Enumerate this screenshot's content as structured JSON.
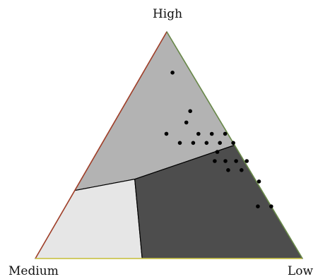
{
  "chart_data": {
    "type": "scatter",
    "subtype": "ternary",
    "vertex_labels": {
      "top": "High",
      "bottom_left": "Medium",
      "bottom_right": "Low"
    },
    "edge_colors": {
      "high_medium": "#a2402a",
      "medium_low": "#d9d24a",
      "low_high": "#6a8a4a"
    },
    "regions": [
      {
        "vertices": [
          [
            1.0,
            0.0,
            0.0
          ],
          [
            0.3,
            0.7,
            0.0
          ],
          [
            0.35,
            0.45,
            0.2
          ],
          [
            0.5,
            0.0,
            0.5
          ]
        ],
        "color": "#b3b3b3"
      },
      {
        "vertices": [
          [
            0.3,
            0.7,
            0.0
          ],
          [
            0.0,
            1.0,
            0.0
          ],
          [
            0.0,
            0.6,
            0.4
          ],
          [
            0.35,
            0.45,
            0.2
          ]
        ],
        "color": "#e6e6e6"
      },
      {
        "vertices": [
          [
            0.5,
            0.0,
            0.5
          ],
          [
            0.35,
            0.45,
            0.2
          ],
          [
            0.0,
            0.6,
            0.4
          ],
          [
            0.0,
            0.0,
            1.0
          ]
        ],
        "color": "#4d4d4d"
      }
    ],
    "points": [
      [
        0.82,
        0.07,
        0.11
      ],
      [
        0.65,
        0.09,
        0.26
      ],
      [
        0.6,
        0.13,
        0.27
      ],
      [
        0.55,
        0.23,
        0.22
      ],
      [
        0.55,
        0.11,
        0.34
      ],
      [
        0.55,
        0.06,
        0.39
      ],
      [
        0.55,
        0.01,
        0.44
      ],
      [
        0.51,
        0.2,
        0.29
      ],
      [
        0.51,
        0.15,
        0.34
      ],
      [
        0.51,
        0.1,
        0.39
      ],
      [
        0.51,
        0.05,
        0.44
      ],
      [
        0.51,
        0.0,
        0.49
      ],
      [
        0.47,
        0.08,
        0.45
      ],
      [
        0.43,
        0.11,
        0.46
      ],
      [
        0.43,
        0.07,
        0.5
      ],
      [
        0.43,
        0.03,
        0.54
      ],
      [
        0.43,
        -0.01,
        0.58
      ],
      [
        0.39,
        0.08,
        0.53
      ],
      [
        0.39,
        0.03,
        0.58
      ],
      [
        0.34,
        -0.01,
        0.67
      ],
      [
        0.23,
        0.05,
        0.72
      ],
      [
        0.23,
        0.0,
        0.77
      ]
    ],
    "point_color": "#000000"
  }
}
